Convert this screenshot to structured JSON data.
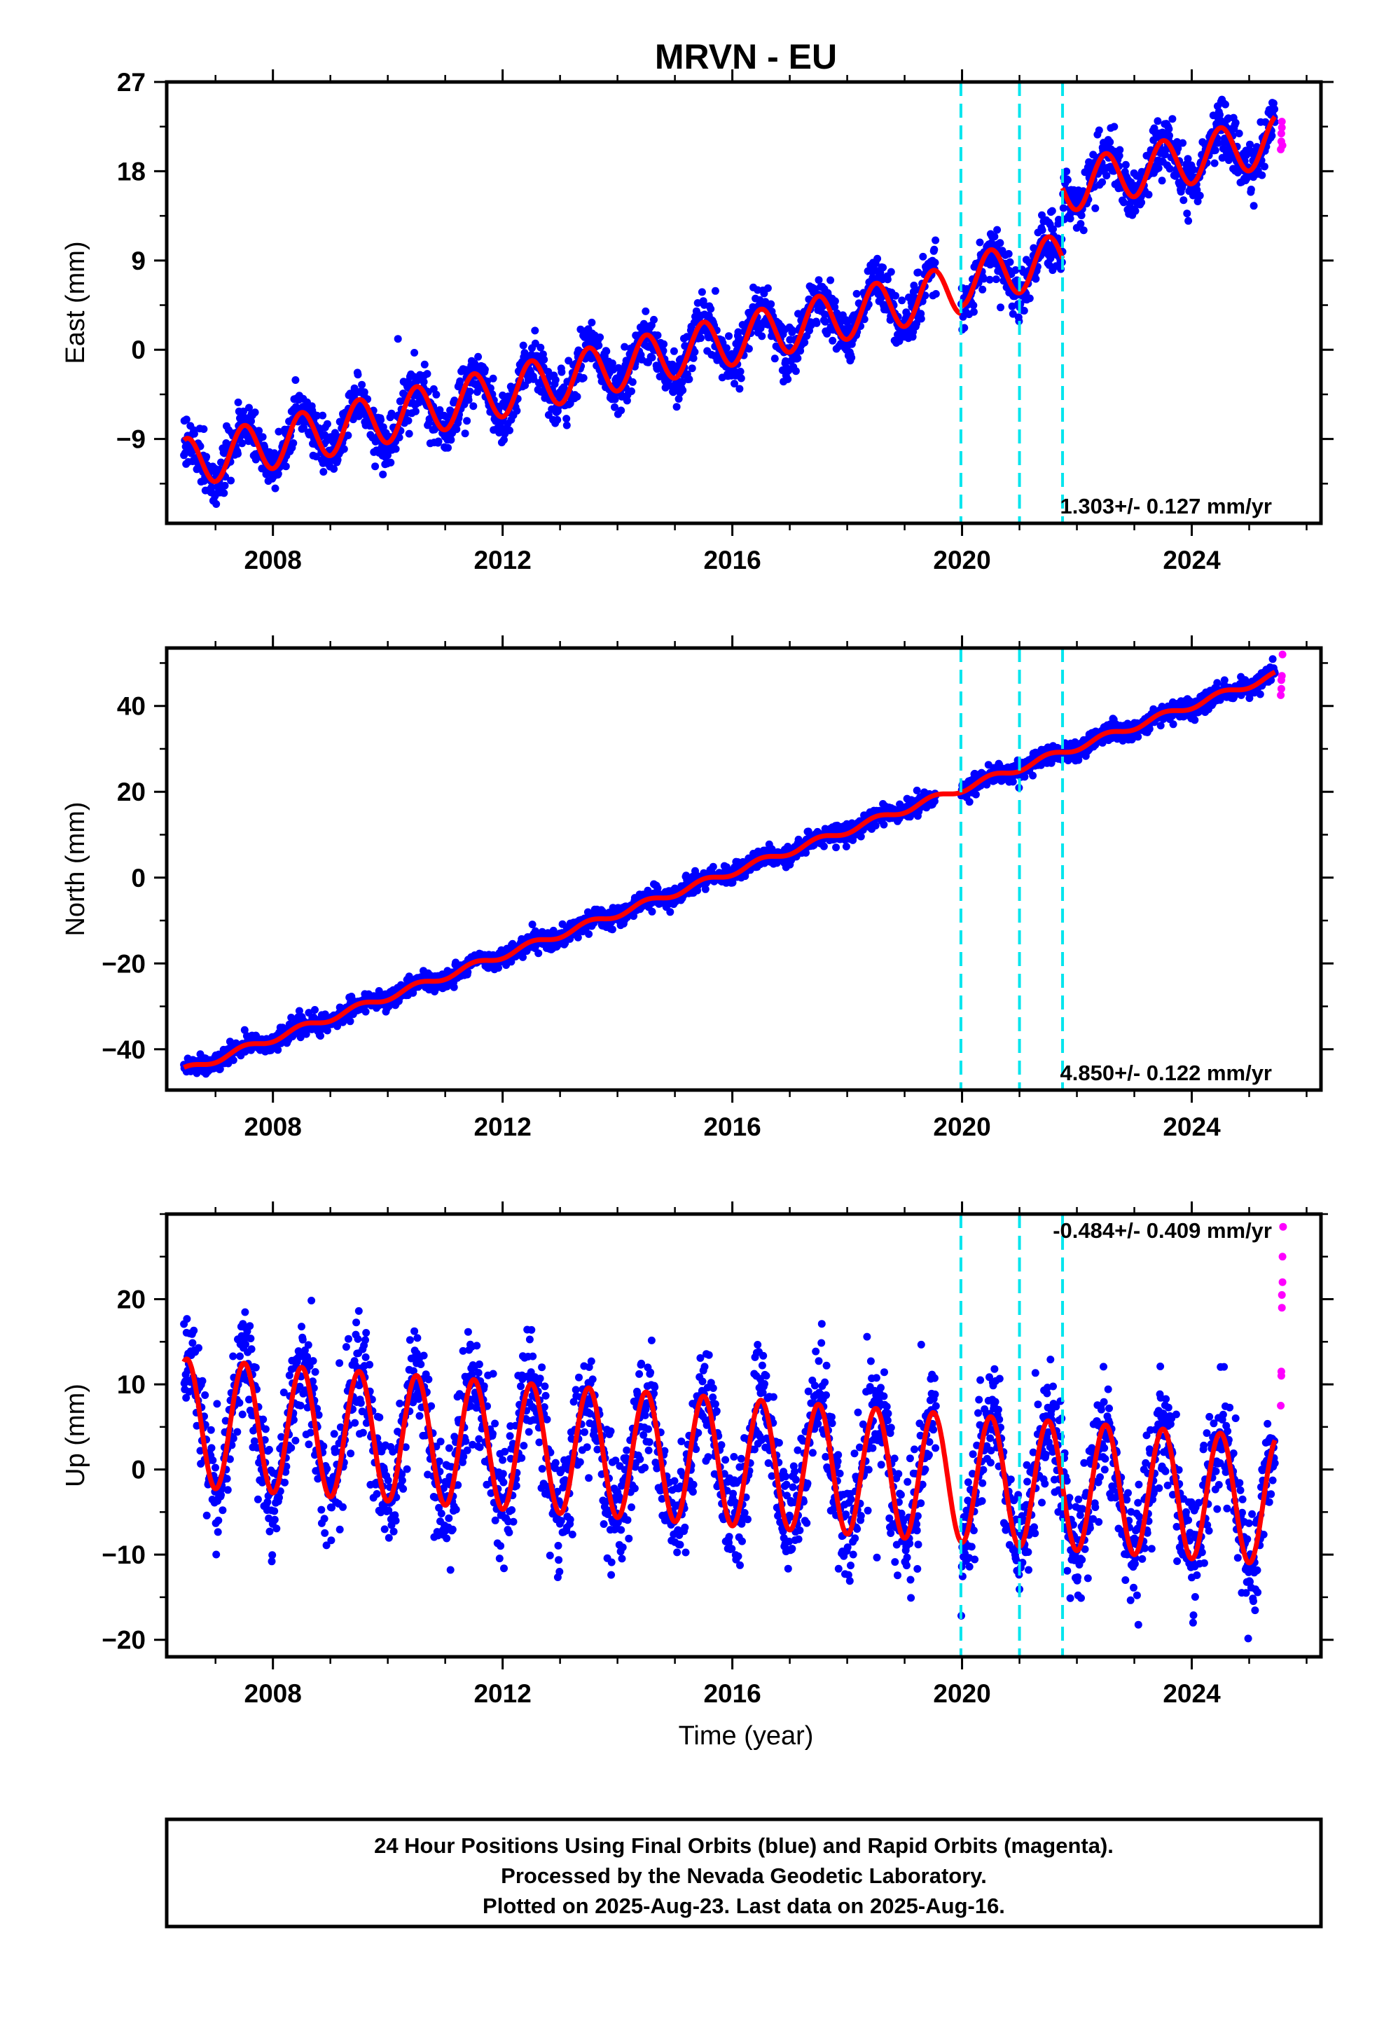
{
  "title": "MRVN - EU",
  "xlabel": "Time (year)",
  "colors": {
    "final_orbits": "#0000ff",
    "rapid_orbits": "#ff00ff",
    "model_fit": "#ff0000",
    "breaks": "#00e5ee",
    "frame": "#000000"
  },
  "notes": [
    "24 Hour Positions Using Final Orbits (blue) and Rapid Orbits (magenta).",
    "Processed by the Nevada Geodetic Laboratory.",
    "Plotted on 2025-Aug-23. Last data on 2025-Aug-16."
  ],
  "chart_data": [
    {
      "type": "scatter",
      "component": "east",
      "ylabel": "East (mm)",
      "rate_label": "1.303+/- 0.127 mm/yr",
      "xlim": [
        2006.15,
        2026.25
      ],
      "ylim": [
        -17.5,
        27
      ],
      "xticks": [
        2008,
        2012,
        2016,
        2020,
        2024
      ],
      "yticks": [
        -9,
        0,
        9,
        18,
        27
      ],
      "break_epochs": [
        2019.98,
        2021.0,
        2021.75
      ],
      "data_span": [
        2006.45,
        2025.45
      ],
      "fit_segments": [
        {
          "start": 2006.45,
          "end": 2019.98,
          "y_at_start": -11.5,
          "slope": 1.303,
          "amplitude": 2.5,
          "peak_phase": 0.5
        },
        {
          "start": 2019.98,
          "end": 2021.75,
          "y_at_start": 6.9,
          "slope": 1.303,
          "amplitude": 2.5,
          "peak_phase": 0.5
        },
        {
          "start": 2021.75,
          "end": 2025.45,
          "y_at_start": 16.3,
          "slope": 1.303,
          "amplitude": 2.5,
          "peak_phase": 0.5
        }
      ],
      "scatter_spread": 1.3,
      "rapid_orbit_points": [
        {
          "x": 2025.55,
          "y": 20.2
        },
        {
          "x": 2025.56,
          "y": 21.0
        },
        {
          "x": 2025.56,
          "y": 21.8
        },
        {
          "x": 2025.57,
          "y": 22.4
        },
        {
          "x": 2025.57,
          "y": 23.0
        },
        {
          "x": 2025.58,
          "y": 20.6
        }
      ]
    },
    {
      "type": "scatter",
      "component": "north",
      "ylabel": "North (mm)",
      "rate_label": "4.850+/- 0.122 mm/yr",
      "xlim": [
        2006.15,
        2026.25
      ],
      "ylim": [
        -49.5,
        53.5
      ],
      "xticks": [
        2008,
        2012,
        2016,
        2020,
        2024
      ],
      "yticks": [
        -40,
        -20,
        0,
        20,
        40
      ],
      "break_epochs": [
        2019.98,
        2021.0,
        2021.75
      ],
      "data_span": [
        2006.45,
        2025.45
      ],
      "fit_segments": [
        {
          "start": 2006.45,
          "end": 2025.45,
          "y_at_start": -45.0,
          "slope": 4.85,
          "amplitude": 0.8,
          "peak_phase": 0.5
        }
      ],
      "scatter_spread": 1.1,
      "rapid_orbit_points": [
        {
          "x": 2025.55,
          "y": 42.5
        },
        {
          "x": 2025.56,
          "y": 44.0
        },
        {
          "x": 2025.56,
          "y": 46.0
        },
        {
          "x": 2025.57,
          "y": 47.0
        },
        {
          "x": 2025.58,
          "y": 52.0
        }
      ]
    },
    {
      "type": "scatter",
      "component": "up",
      "ylabel": "Up (mm)",
      "rate_label": "-0.484+/- 0.409 mm/yr",
      "xlim": [
        2006.15,
        2026.25
      ],
      "ylim": [
        -22,
        30
      ],
      "xticks": [
        2008,
        2012,
        2016,
        2020,
        2024
      ],
      "yticks": [
        -20,
        -10,
        0,
        10,
        20
      ],
      "break_epochs": [
        2019.98,
        2021.0,
        2021.75
      ],
      "data_span": [
        2006.45,
        2025.45
      ],
      "fit_segments": [
        {
          "start": 2006.45,
          "end": 2025.45,
          "y_at_start": 5.5,
          "slope": -0.484,
          "amplitude": 7.5,
          "peak_phase": 0.5
        }
      ],
      "scatter_spread": 3.4,
      "rapid_orbit_points": [
        {
          "x": 2025.55,
          "y": 7.5
        },
        {
          "x": 2025.56,
          "y": 11.0
        },
        {
          "x": 2025.56,
          "y": 11.5
        },
        {
          "x": 2025.57,
          "y": 19.0
        },
        {
          "x": 2025.57,
          "y": 20.5
        },
        {
          "x": 2025.58,
          "y": 22.0
        },
        {
          "x": 2025.58,
          "y": 25.0
        },
        {
          "x": 2025.59,
          "y": 28.5
        }
      ]
    }
  ]
}
